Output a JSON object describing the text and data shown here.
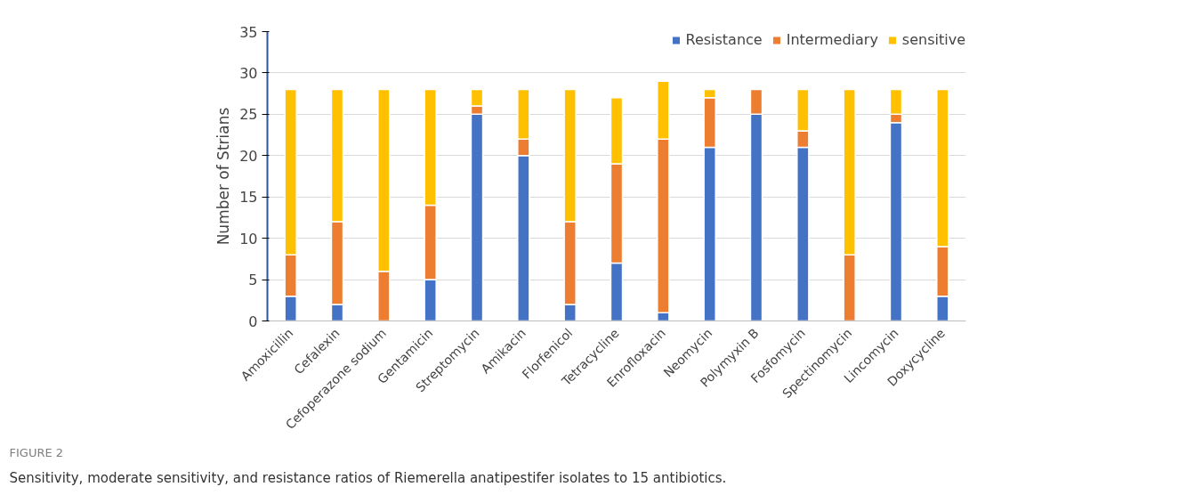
{
  "chart_data": {
    "type": "bar",
    "stacked": true,
    "ylabel": "Number of Strians",
    "categories": [
      "Amoxicillin",
      "Cefalexin",
      "Cefoperazone sodium",
      "Gentamicin",
      "Streptomycin",
      "Amikacin",
      "Florfenicol",
      "Tetracycline",
      "Enrofloxacin",
      "Neomycin",
      "Polymyxin B",
      "Fosfomycin",
      "Spectinomycin",
      "Lincomycin",
      "Doxycycline"
    ],
    "series": [
      {
        "name": "Resistance",
        "color": "#4472c4",
        "values": [
          3,
          2,
          0,
          5,
          25,
          20,
          2,
          7,
          1,
          21,
          25,
          21,
          0,
          24,
          3
        ]
      },
      {
        "name": "Intermediary",
        "color": "#ed7d31",
        "values": [
          5,
          10,
          6,
          9,
          1,
          2,
          10,
          12,
          21,
          6,
          3,
          2,
          8,
          1,
          6
        ]
      },
      {
        "name": "sensitive",
        "color": "#ffc000",
        "values": [
          20,
          16,
          22,
          14,
          2,
          6,
          16,
          8,
          7,
          1,
          0,
          5,
          20,
          3,
          19
        ]
      }
    ],
    "ylim": [
      0,
      35
    ],
    "yticks": [
      0,
      5,
      10,
      15,
      20,
      25,
      30,
      35
    ],
    "grid": "y",
    "legend": "top right",
    "annotations": [
      "FIGURE 2",
      "Sensitivity, moderate sensitivity, and resistance ratios of Riemerella anatipestifer isolates to 15 antibiotics."
    ]
  }
}
